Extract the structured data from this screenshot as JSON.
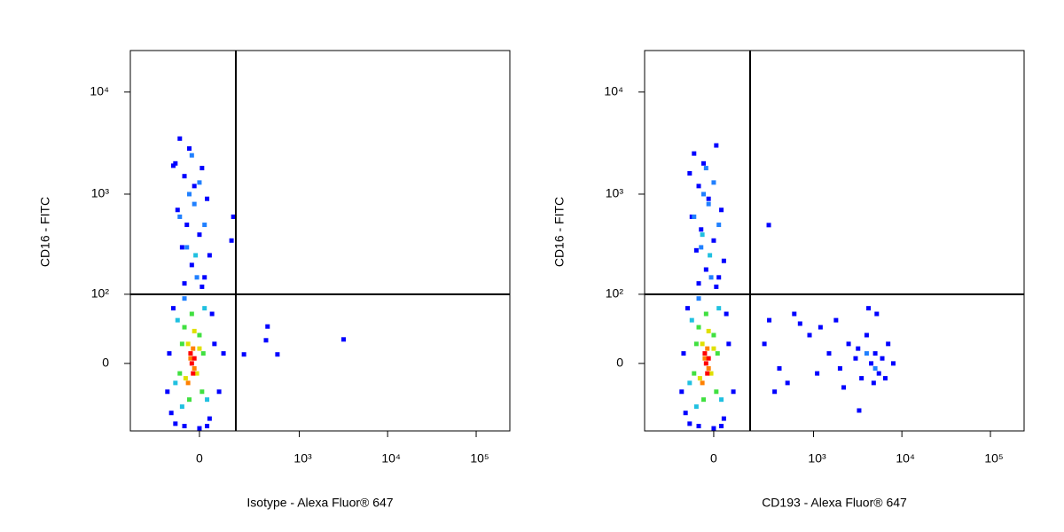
{
  "chart_data": [
    {
      "type": "scatter",
      "xlabel": "Isotype - Alexa Fluor® 647",
      "ylabel": "CD16 - FITC",
      "xscale": "biexponential",
      "yscale": "biexponential",
      "xlim": [
        -440,
        240000
      ],
      "ylim": [
        -96,
        25500
      ],
      "xticks": [
        0,
        {
          "value": 1000,
          "label": "10³"
        },
        {
          "value": 10000,
          "label": "10⁴"
        },
        {
          "value": 100000,
          "label": "10⁵"
        }
      ],
      "yticks": [
        0,
        {
          "value": 100,
          "label": "10²"
        },
        {
          "value": 1000,
          "label": "10³"
        },
        {
          "value": 10000,
          "label": "10⁴"
        }
      ],
      "gate_x": 164,
      "gate_y": 100,
      "series": [
        {
          "color": "#0000ff",
          "x": [
            -80,
            -40,
            -100,
            10,
            -60,
            -20,
            30,
            -90,
            -50,
            0,
            -70,
            40,
            -30,
            -110,
            20,
            -60,
            10,
            150,
            140,
            428,
            410,
            215,
            560,
            3180,
            -120,
            -100,
            40,
            60,
            -130,
            50,
            -110,
            30,
            80,
            100,
            -140,
            0,
            -60
          ],
          "y": [
            3500,
            2800,
            2000,
            1800,
            1500,
            1200,
            900,
            700,
            500,
            400,
            300,
            250,
            200,
            1900,
            150,
            130,
            120,
            600,
            350,
            41,
            24,
            9,
            9,
            25,
            -60,
            -80,
            -70,
            20,
            10,
            60,
            70,
            -85,
            -30,
            10,
            -30,
            -90,
            -85
          ]
        },
        {
          "color": "#2080ff",
          "x": [
            -60,
            -20,
            -40,
            -80,
            -50,
            -10,
            20,
            -30,
            0
          ],
          "y": [
            90,
            800,
            1000,
            600,
            300,
            150,
            500,
            2400,
            1300
          ]
        },
        {
          "color": "#20c0e0",
          "x": [
            20,
            -90,
            30,
            -100,
            -70,
            -15
          ],
          "y": [
            70,
            50,
            -40,
            -20,
            -50,
            250
          ]
        },
        {
          "color": "#40e040",
          "x": [
            -60,
            0,
            -80,
            10,
            -40,
            -30,
            15,
            -70
          ],
          "y": [
            40,
            30,
            -10,
            -30,
            -40,
            60,
            10,
            20
          ]
        },
        {
          "color": "#e0e000",
          "x": [
            -45,
            -10,
            -55,
            -20,
            0
          ],
          "y": [
            20,
            -10,
            -15,
            35,
            15
          ]
        },
        {
          "color": "#ff8000",
          "x": [
            -35,
            -20,
            -45,
            -25
          ],
          "y": [
            5,
            -5,
            -20,
            15
          ]
        },
        {
          "color": "#ff0000",
          "x": [
            -30,
            -25,
            -35,
            -20
          ],
          "y": [
            0,
            -10,
            10,
            5
          ]
        }
      ]
    },
    {
      "type": "scatter",
      "xlabel": "CD193 - Alexa Fluor® 647",
      "ylabel": "CD16 - FITC",
      "xscale": "biexponential",
      "yscale": "biexponential",
      "xlim": [
        -440,
        240000
      ],
      "ylim": [
        -96,
        25500
      ],
      "xticks": [
        0,
        {
          "value": 1000,
          "label": "10³"
        },
        {
          "value": 10000,
          "label": "10⁴"
        },
        {
          "value": 100000,
          "label": "10⁵"
        }
      ],
      "yticks": [
        0,
        {
          "value": 100,
          "label": "10²"
        },
        {
          "value": 1000,
          "label": "10³"
        },
        {
          "value": 10000,
          "label": "10⁴"
        }
      ],
      "gate_x": 164,
      "gate_y": 100,
      "series": [
        {
          "color": "#0000ff",
          "x": [
            -80,
            -40,
            -100,
            10,
            -60,
            -20,
            30,
            -90,
            -50,
            0,
            -70,
            40,
            -30,
            20,
            -60,
            10,
            296,
            -120,
            -100,
            40,
            60,
            -130,
            50,
            -110,
            30,
            80,
            -140,
            0,
            -60,
            260,
            300,
            400,
            500,
            600,
            700,
            900,
            1100,
            1500,
            2000,
            2500,
            3000,
            3500,
            4000,
            4500,
            5000,
            5500,
            6000,
            7000,
            8000,
            3290,
            4200,
            5200,
            1800,
            2200,
            6500,
            4800,
            3200,
            1200,
            350
          ],
          "y": [
            2500,
            2000,
            1600,
            3000,
            1200,
            900,
            700,
            600,
            450,
            350,
            280,
            220,
            180,
            150,
            130,
            120,
            497,
            -60,
            -80,
            -70,
            20,
            10,
            60,
            70,
            -85,
            -30,
            -30,
            -90,
            -85,
            20,
            50,
            -5,
            -20,
            60,
            45,
            30,
            -10,
            10,
            -5,
            20,
            5,
            -15,
            30,
            0,
            10,
            -10,
            5,
            20,
            0,
            -56,
            70,
            60,
            50,
            -25,
            -15,
            -20,
            15,
            40,
            -30
          ]
        },
        {
          "color": "#2080ff",
          "x": [
            -60,
            -20,
            -40,
            -80,
            -50,
            -10,
            20,
            -30,
            0,
            4000,
            5000
          ],
          "y": [
            90,
            800,
            1000,
            600,
            300,
            150,
            500,
            1800,
            1300,
            10,
            -5
          ]
        },
        {
          "color": "#20c0e0",
          "x": [
            20,
            -90,
            30,
            -100,
            -70,
            -15,
            -45
          ],
          "y": [
            70,
            50,
            -40,
            -20,
            -50,
            250,
            400
          ]
        },
        {
          "color": "#40e040",
          "x": [
            -60,
            0,
            -80,
            10,
            -40,
            -30,
            15,
            -70
          ],
          "y": [
            40,
            30,
            -10,
            -30,
            -40,
            60,
            10,
            20
          ]
        },
        {
          "color": "#e0e000",
          "x": [
            -45,
            -10,
            -55,
            -20,
            0
          ],
          "y": [
            20,
            -10,
            -15,
            35,
            15
          ]
        },
        {
          "color": "#ff8000",
          "x": [
            -35,
            -20,
            -45,
            -25
          ],
          "y": [
            5,
            -5,
            -20,
            15
          ]
        },
        {
          "color": "#ff0000",
          "x": [
            -30,
            -25,
            -35,
            -20
          ],
          "y": [
            0,
            -10,
            10,
            5
          ]
        }
      ]
    }
  ]
}
